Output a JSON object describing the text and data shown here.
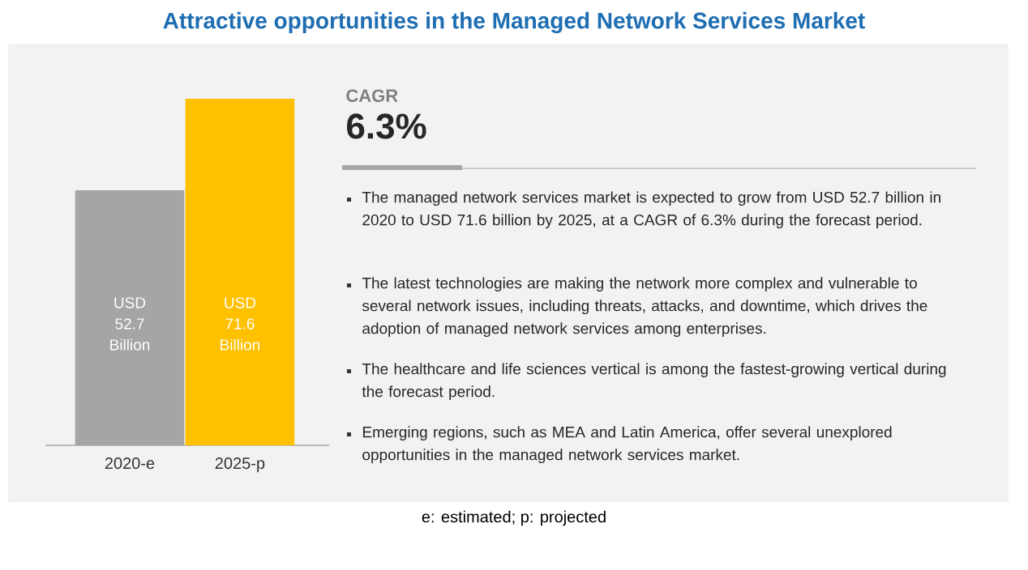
{
  "chart_data": [
    {
      "type": "bar",
      "title": "Attractive opportunities in the Managed Network Services Market",
      "categories": [
        "2020-e",
        "2025-p"
      ],
      "values": [
        52.7,
        71.6
      ],
      "colors": [
        "#a5a5a5",
        "#ffc000"
      ],
      "value_labels": [
        "USD 52.7 Billion",
        "USD 71.6 Billion"
      ],
      "annotations": [
        "e: estimated; p: projected"
      ]
    },
    {
      "type": "other",
      "title": "CAGR",
      "subtitle": "6.3%",
      "annotations": [
        "The managed network services market is expected to grow from USD 52.7 billion in 2020 to USD 71.6 billion by 2025, at a CAGR of 6.3% during the forecast period.",
        "The latest technologies are making the network more complex and vulnerable to several network issues, including threats, attacks, and downtime, which drives the adoption of managed network services among enterprises.",
        "The healthcare and life sciences vertical is among the fastest-growing vertical during the forecast period.",
        "Emerging regions, such as MEA and Latin America, offer several unexplored opportunities in the managed network services market."
      ]
    }
  ]
}
